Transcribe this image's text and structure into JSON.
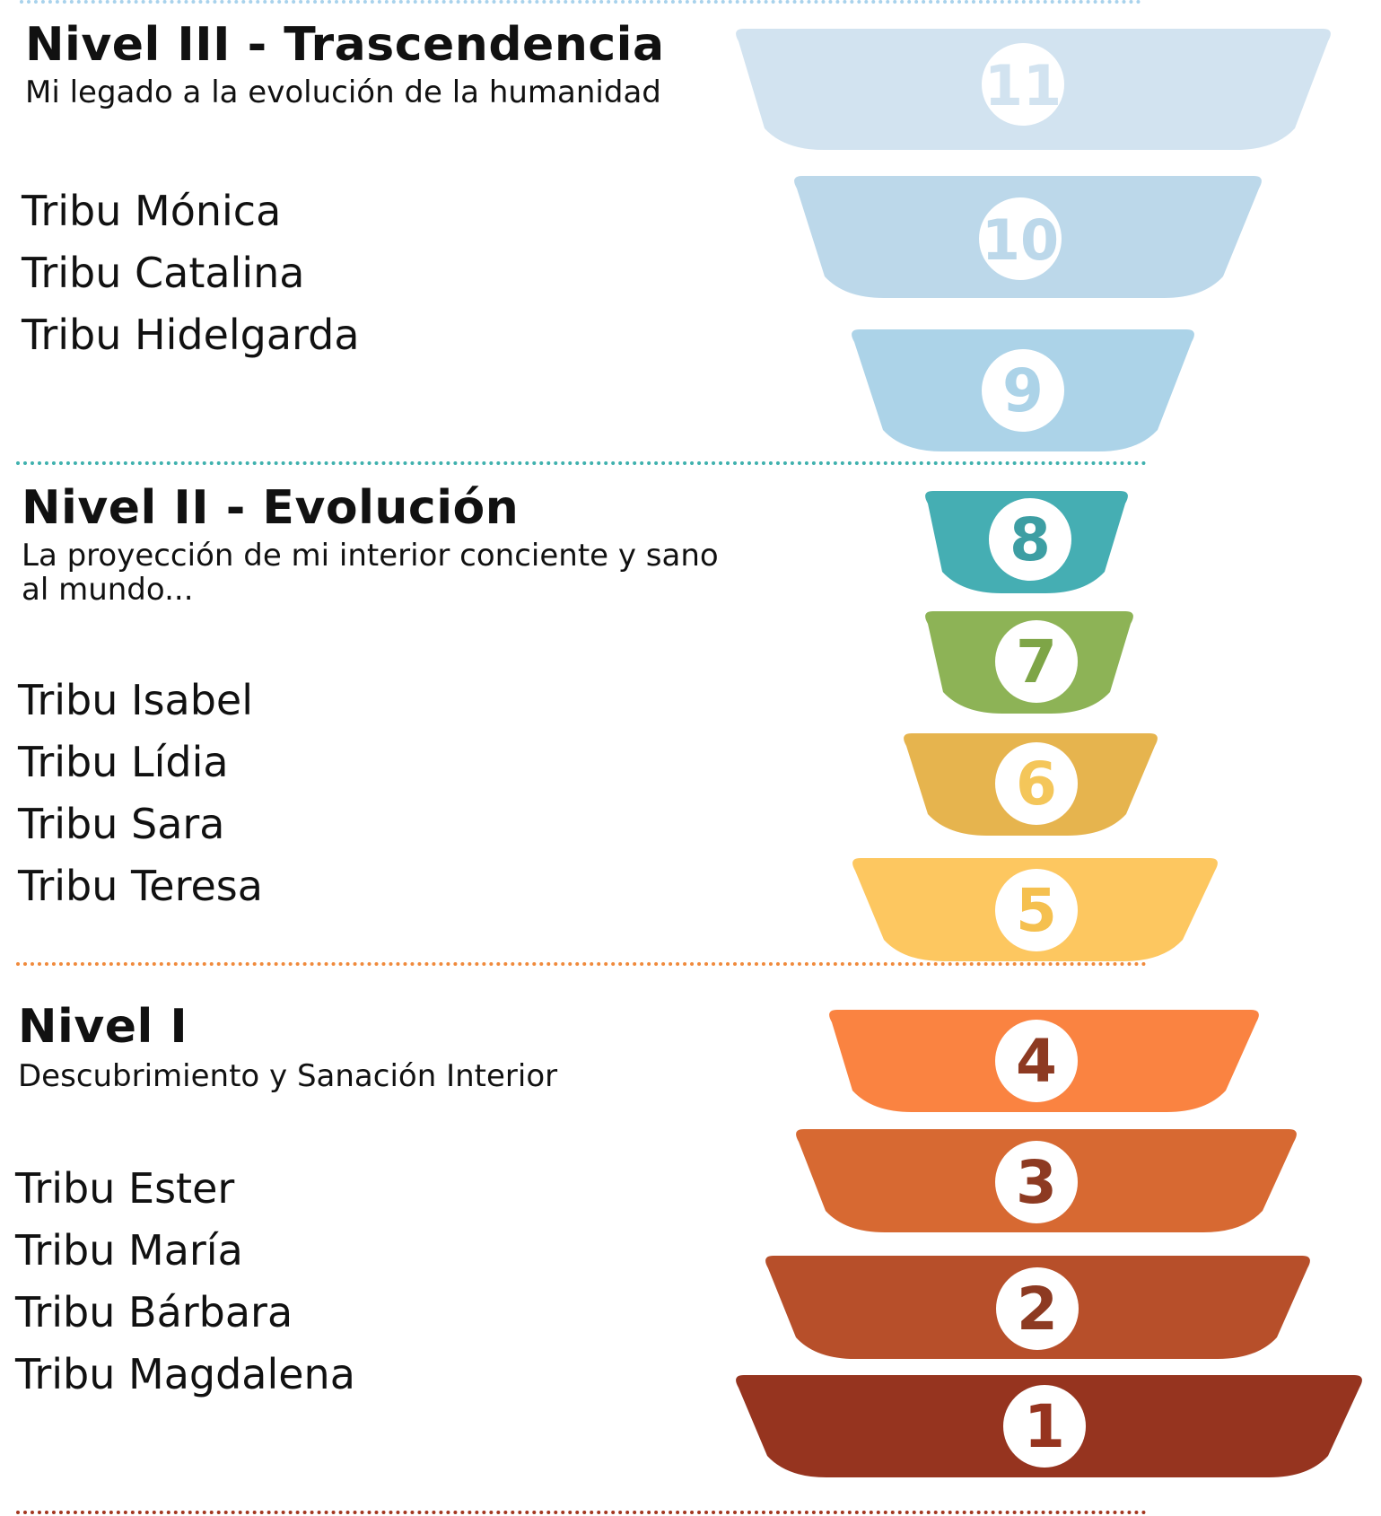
{
  "levels": [
    {
      "title": "Nivel III - Trascendencia",
      "subtitle": "Mi legado a la evolución de la humanidad",
      "subtitle_line2": "",
      "divider_color": "#a8d2ec",
      "tribes": [
        "Tribu  Mónica",
        "Tribu  Catalina",
        "Tribu Hidelgarda"
      ]
    },
    {
      "title": "Nivel II - Evolución",
      "subtitle": "La proyección de mi interior conciente y sano",
      "subtitle_line2": "al mundo...",
      "divider_color": "#3fb1ae",
      "tribes": [
        "Tribu Isabel",
        "Tribu Lídia",
        "Tribu Sara",
        "Tribu Teresa"
      ]
    },
    {
      "title": "Nivel I",
      "subtitle": "Descubrimiento y Sanación Interior",
      "subtitle_line2": "",
      "divider_color": "#f08a3c",
      "tribes": [
        "Tribu Ester",
        "Tribu María",
        "Tribu Bárbara",
        "Tribu Magdalena"
      ]
    }
  ],
  "bottom_divider_color": "#a2361f",
  "stages": [
    {
      "number": "11",
      "color": "#d2e3f0",
      "number_color": "#d2e3f0"
    },
    {
      "number": "10",
      "color": "#bcd8ea",
      "number_color": "#bcd8ea"
    },
    {
      "number": "9",
      "color": "#acd3e8",
      "number_color": "#acd3e8"
    },
    {
      "number": "8",
      "color": "#45aeb3",
      "number_color": "#3d9ea3"
    },
    {
      "number": "7",
      "color": "#8db356",
      "number_color": "#7ea547"
    },
    {
      "number": "6",
      "color": "#e6b44e",
      "number_color": "#f4c65a"
    },
    {
      "number": "5",
      "color": "#fdc760",
      "number_color": "#f5c04f"
    },
    {
      "number": "4",
      "color": "#fa8341",
      "number_color": "#8d3a22"
    },
    {
      "number": "3",
      "color": "#d76932",
      "number_color": "#8d3a22"
    },
    {
      "number": "2",
      "color": "#b74f2a",
      "number_color": "#8d3a22"
    },
    {
      "number": "1",
      "color": "#96341f",
      "number_color": "#96341f"
    }
  ]
}
